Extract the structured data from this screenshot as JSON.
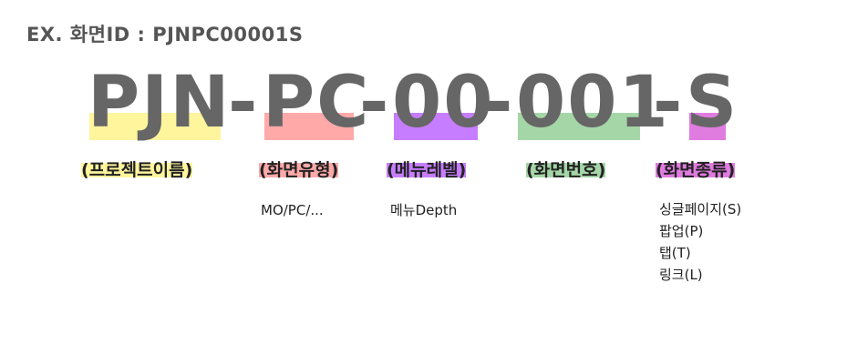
{
  "heading": "EX. 화면ID : PJNPC00001S",
  "colors": {
    "project": "#fff59d",
    "screen_type": "#ffa9a9",
    "menu_level": "#c77dff",
    "screen_number": "#a5d6a7",
    "screen_kind": "#e07be0",
    "code_text": "#666666"
  },
  "segments": {
    "project": {
      "code": "PJN",
      "label": "(프로젝트이름)"
    },
    "screen_type": {
      "code": "PC",
      "label": "(화면유형)",
      "desc": [
        "MO/PC/..."
      ]
    },
    "menu_level": {
      "code": "00",
      "label": "(메뉴레벨)",
      "desc": [
        "메뉴Depth"
      ]
    },
    "screen_number": {
      "code": "001",
      "label": "(화면번호)"
    },
    "screen_kind": {
      "code": "S",
      "label": "(화면종류)",
      "desc": [
        "싱글페이지(S)",
        "팝업(P)",
        "탭(T)",
        "링크(L)"
      ]
    }
  },
  "separator": "-"
}
